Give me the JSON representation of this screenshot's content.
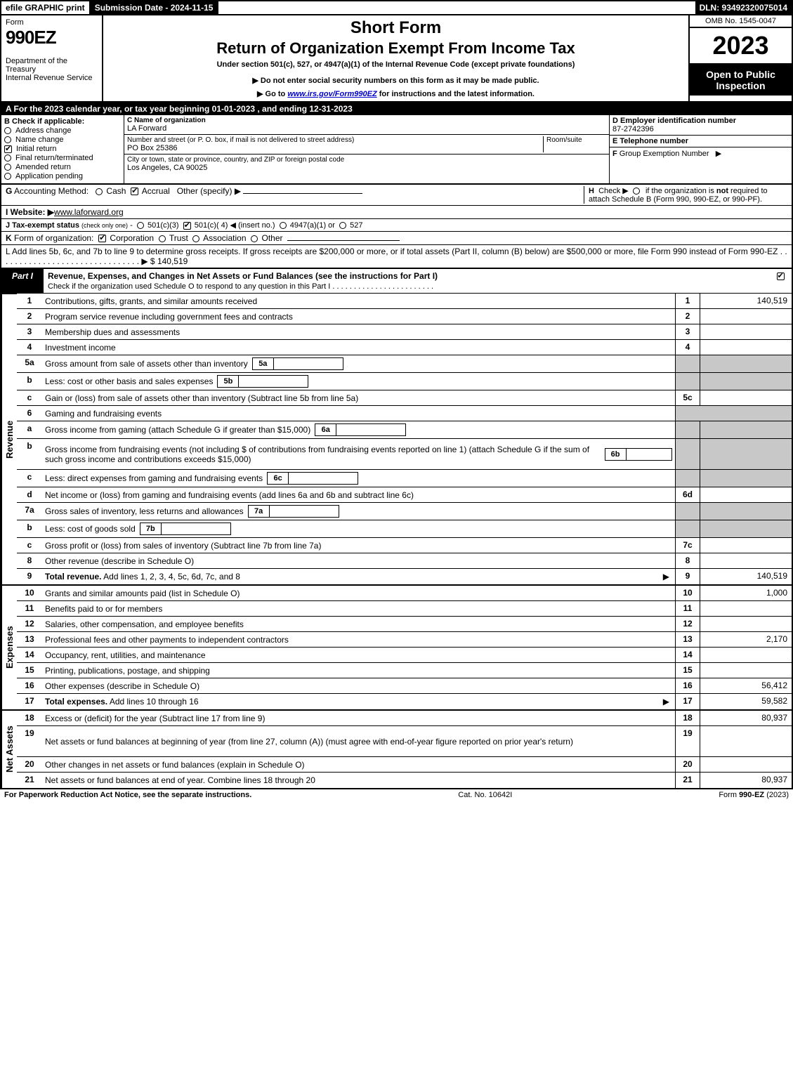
{
  "topbar": {
    "efile": "efile GRAPHIC print",
    "submission": "Submission Date - 2024-11-15",
    "dln": "DLN: 93492320075014"
  },
  "header": {
    "form_word": "Form",
    "form_num": "990EZ",
    "dept": "Department of the Treasury\nInternal Revenue Service",
    "short": "Short Form",
    "return_title": "Return of Organization Exempt From Income Tax",
    "under": "Under section 501(c), 527, or 4947(a)(1) of the Internal Revenue Code (except private foundations)",
    "donot": "▶ Do not enter social security numbers on this form as it may be made public.",
    "goto_pre": "▶ Go to ",
    "goto_link": "www.irs.gov/Form990EZ",
    "goto_post": " for instructions and the latest information.",
    "omb": "OMB No. 1545-0047",
    "year": "2023",
    "open": "Open to Public Inspection"
  },
  "line_a": "A  For the 2023 calendar year, or tax year beginning 01-01-2023 , and ending 12-31-2023",
  "box_b": {
    "title": "B  Check if applicable:",
    "items": [
      "Address change",
      "Name change",
      "Initial return",
      "Final return/terminated",
      "Amended return",
      "Application pending"
    ],
    "checked_index": 2
  },
  "box_c": {
    "name_lbl": "C Name of organization",
    "name": "LA Forward",
    "addr_lbl": "Number and street (or P. O. box, if mail is not delivered to street address)",
    "room_lbl": "Room/suite",
    "addr": "PO Box 25386",
    "city_lbl": "City or town, state or province, country, and ZIP or foreign postal code",
    "city": "Los Angeles, CA  90025"
  },
  "box_d": {
    "lbl": "D Employer identification number",
    "val": "87-2742396"
  },
  "box_e": {
    "lbl": "E Telephone number",
    "val": ""
  },
  "box_f": {
    "lbl": "F Group Exemption Number   ▶",
    "val": ""
  },
  "line_g": "G Accounting Method:    Cash    Accrual   Other (specify) ▶",
  "line_h": {
    "text": "H  Check ▶     if the organization is not required to attach Schedule B (Form 990, 990-EZ, or 990-PF).",
    "pre": "H  Check ▶ ",
    "post": " if the organization is "
  },
  "line_i": {
    "lbl": "I Website: ▶",
    "val": "www.laforward.org"
  },
  "line_j": "J Tax-exempt status (check only one) -   501(c)(3)    501(c)( 4) ◀ (insert no.)   4947(a)(1) or   527",
  "line_k": "K Form of organization:    Corporation    Trust    Association    Other",
  "line_l": {
    "text": "L Add lines 5b, 6c, and 7b to line 9 to determine gross receipts. If gross receipts are $200,000 or more, or if total assets (Part II, column (B) below) are $500,000 or more, file Form 990 instead of Form 990-EZ  . . . . . . . . . . . . . . . . . . . . . . . . . . . . . . .  ▶ $",
    "val": "140,519"
  },
  "part1": {
    "tag": "Part I",
    "title": "Revenue, Expenses, and Changes in Net Assets or Fund Balances (see the instructions for Part I)",
    "check_text": "Check if the organization used Schedule O to respond to any question in this Part I  . . . . . . . . . . . . . . . . . . . . . . . ."
  },
  "sections": {
    "rev": "Revenue",
    "exp": "Expenses",
    "net": "Net Assets"
  },
  "rows": [
    {
      "n": "1",
      "d": "Contributions, gifts, grants, and similar amounts received",
      "r": "1",
      "v": "140,519"
    },
    {
      "n": "2",
      "d": "Program service revenue including government fees and contracts",
      "r": "2",
      "v": ""
    },
    {
      "n": "3",
      "d": "Membership dues and assessments",
      "r": "3",
      "v": ""
    },
    {
      "n": "4",
      "d": "Investment income",
      "r": "4",
      "v": ""
    },
    {
      "n": "5a",
      "d": "Gross amount from sale of assets other than inventory",
      "mb": "5a",
      "shade": true
    },
    {
      "n": "b",
      "d": "Less: cost or other basis and sales expenses",
      "mb": "5b",
      "shade": true
    },
    {
      "n": "c",
      "d": "Gain or (loss) from sale of assets other than inventory (Subtract line 5b from line 5a)",
      "r": "5c",
      "v": ""
    },
    {
      "n": "6",
      "d": "Gaming and fundraising events",
      "shade": true,
      "noboxes": true
    },
    {
      "n": "a",
      "d": "Gross income from gaming (attach Schedule G if greater than $15,000)",
      "mb": "6a",
      "shade": true
    },
    {
      "n": "b",
      "d": "Gross income from fundraising events (not including $                    of contributions from fundraising events reported on line 1) (attach Schedule G if the sum of such gross income and contributions exceeds $15,000)",
      "mb": "6b",
      "shade": true,
      "tall": true
    },
    {
      "n": "c",
      "d": "Less: direct expenses from gaming and fundraising events",
      "mb": "6c",
      "shade": true
    },
    {
      "n": "d",
      "d": "Net income or (loss) from gaming and fundraising events (add lines 6a and 6b and subtract line 6c)",
      "r": "6d",
      "v": ""
    },
    {
      "n": "7a",
      "d": "Gross sales of inventory, less returns and allowances",
      "mb": "7a",
      "shade": true
    },
    {
      "n": "b",
      "d": "Less: cost of goods sold",
      "mb": "7b",
      "shade": true
    },
    {
      "n": "c",
      "d": "Gross profit or (loss) from sales of inventory (Subtract line 7b from line 7a)",
      "r": "7c",
      "v": ""
    },
    {
      "n": "8",
      "d": "Other revenue (describe in Schedule O)",
      "r": "8",
      "v": ""
    },
    {
      "n": "9",
      "d": "Total revenue. Add lines 1, 2, 3, 4, 5c, 6d, 7c, and 8",
      "r": "9",
      "v": "140,519",
      "bold": true,
      "arrow": true
    }
  ],
  "exp_rows": [
    {
      "n": "10",
      "d": "Grants and similar amounts paid (list in Schedule O)",
      "r": "10",
      "v": "1,000"
    },
    {
      "n": "11",
      "d": "Benefits paid to or for members",
      "r": "11",
      "v": ""
    },
    {
      "n": "12",
      "d": "Salaries, other compensation, and employee benefits",
      "r": "12",
      "v": ""
    },
    {
      "n": "13",
      "d": "Professional fees and other payments to independent contractors",
      "r": "13",
      "v": "2,170"
    },
    {
      "n": "14",
      "d": "Occupancy, rent, utilities, and maintenance",
      "r": "14",
      "v": ""
    },
    {
      "n": "15",
      "d": "Printing, publications, postage, and shipping",
      "r": "15",
      "v": ""
    },
    {
      "n": "16",
      "d": "Other expenses (describe in Schedule O)",
      "r": "16",
      "v": "56,412"
    },
    {
      "n": "17",
      "d": "Total expenses. Add lines 10 through 16",
      "r": "17",
      "v": "59,582",
      "bold": true,
      "arrow": true
    }
  ],
  "net_rows": [
    {
      "n": "18",
      "d": "Excess or (deficit) for the year (Subtract line 17 from line 9)",
      "r": "18",
      "v": "80,937"
    },
    {
      "n": "19",
      "d": "Net assets or fund balances at beginning of year (from line 27, column (A)) (must agree with end-of-year figure reported on prior year's return)",
      "r": "19",
      "v": "",
      "tall": true
    },
    {
      "n": "20",
      "d": "Other changes in net assets or fund balances (explain in Schedule O)",
      "r": "20",
      "v": ""
    },
    {
      "n": "21",
      "d": "Net assets or fund balances at end of year. Combine lines 18 through 20",
      "r": "21",
      "v": "80,937"
    }
  ],
  "footer": {
    "left": "For Paperwork Reduction Act Notice, see the separate instructions.",
    "mid": "Cat. No. 10642I",
    "right_pre": "Form ",
    "right_form": "990-EZ",
    "right_post": " (2023)"
  }
}
